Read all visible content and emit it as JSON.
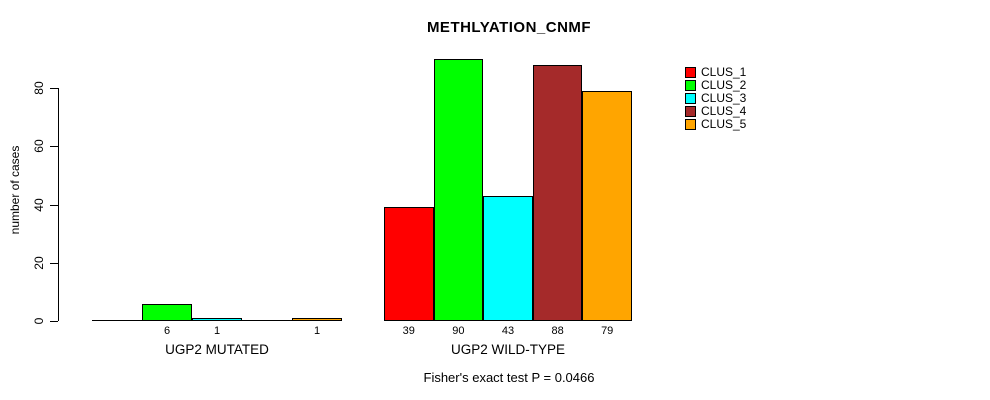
{
  "chart_data": {
    "type": "bar",
    "title": "METHLYATION_CNMF",
    "ylabel": "number of cases",
    "footnote": "Fisher's exact test P = 0.0466",
    "ylim": [
      0,
      90
    ],
    "yticks": [
      0,
      20,
      40,
      60,
      80
    ],
    "grid": false,
    "legend_position": "right",
    "series": [
      {
        "name": "CLUS_1",
        "color": "#FF0000"
      },
      {
        "name": "CLUS_2",
        "color": "#00FF00"
      },
      {
        "name": "CLUS_3",
        "color": "#00FFFF"
      },
      {
        "name": "CLUS_4",
        "color": "#A52A2A"
      },
      {
        "name": "CLUS_5",
        "color": "#FFA500"
      }
    ],
    "groups": [
      {
        "label": "UGP2 MUTATED",
        "values": [
          0,
          6,
          1,
          0,
          1
        ],
        "bar_labels": [
          "",
          "6",
          "1",
          "",
          "1"
        ]
      },
      {
        "label": "UGP2 WILD-TYPE",
        "values": [
          39,
          90,
          43,
          88,
          79
        ],
        "bar_labels": [
          "39",
          "90",
          "43",
          "88",
          "79"
        ]
      }
    ]
  }
}
